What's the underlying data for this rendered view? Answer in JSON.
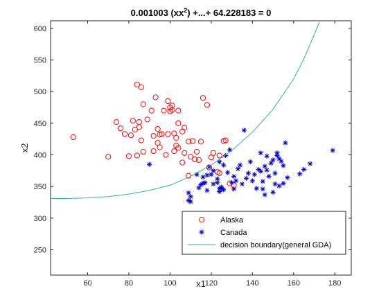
{
  "chart_data": {
    "type": "scatter",
    "title": {
      "prefix": "0.001003 (xx",
      "sup": "2",
      "suffix": ") +...+ 64.228183 = 0"
    },
    "xlabel": "x1",
    "ylabel": "x2",
    "xlim": [
      42,
      188
    ],
    "ylim": [
      210,
      612
    ],
    "xticks": [
      60,
      80,
      100,
      120,
      140,
      160,
      180
    ],
    "yticks": [
      250,
      300,
      350,
      400,
      450,
      500,
      550,
      600
    ],
    "grid": false,
    "legend_position": "bottom-right",
    "series": [
      {
        "name": "Alaska",
        "marker": "circle",
        "color": "#ff0000",
        "points": [
          [
            53,
            428
          ],
          [
            70,
            397
          ],
          [
            74,
            452
          ],
          [
            76,
            442
          ],
          [
            78,
            433
          ],
          [
            80,
            398
          ],
          [
            81,
            431
          ],
          [
            82,
            454
          ],
          [
            83,
            440
          ],
          [
            84,
            511
          ],
          [
            84,
            399
          ],
          [
            85,
            452
          ],
          [
            85,
            444
          ],
          [
            86,
            507
          ],
          [
            86,
            423
          ],
          [
            87,
            405
          ],
          [
            87,
            480
          ],
          [
            89,
            456
          ],
          [
            91,
            470
          ],
          [
            92,
            406
          ],
          [
            92,
            430
          ],
          [
            93,
            491
          ],
          [
            94,
            419
          ],
          [
            94,
            441
          ],
          [
            95,
            412
          ],
          [
            95,
            432
          ],
          [
            96,
            433
          ],
          [
            97,
            470
          ],
          [
            98,
            400
          ],
          [
            99,
            485
          ],
          [
            99,
            433
          ],
          [
            100,
            475
          ],
          [
            100,
            469
          ],
          [
            101,
            478
          ],
          [
            101,
            471
          ],
          [
            102,
            434
          ],
          [
            102,
            406
          ],
          [
            103,
            415
          ],
          [
            103,
            427
          ],
          [
            104,
            450
          ],
          [
            104,
            411
          ],
          [
            104,
            470
          ],
          [
            106,
            388
          ],
          [
            106,
            437
          ],
          [
            107,
            443
          ],
          [
            107,
            403
          ],
          [
            109,
            421
          ],
          [
            110,
            397
          ],
          [
            111,
            422
          ],
          [
            112,
            393
          ],
          [
            113,
            405
          ],
          [
            114,
            392
          ],
          [
            115,
            421
          ],
          [
            116,
            490
          ],
          [
            118,
            479
          ],
          [
            119,
            380
          ],
          [
            120,
            396
          ],
          [
            121,
            403
          ],
          [
            123,
            373
          ],
          [
            124,
            371
          ],
          [
            124,
            399
          ],
          [
            126,
            422
          ],
          [
            127,
            423
          ],
          [
            129,
            355
          ],
          [
            131,
            352
          ],
          [
            109,
            367
          ]
        ]
      },
      {
        "name": "Canada",
        "marker": "star",
        "color": "#0000cc",
        "points": [
          [
            90,
            385
          ],
          [
            109,
            340
          ],
          [
            109,
            328
          ],
          [
            110,
            326
          ],
          [
            110,
            334
          ],
          [
            113,
            369
          ],
          [
            114,
            348
          ],
          [
            115,
            353
          ],
          [
            116,
            355
          ],
          [
            116,
            365
          ],
          [
            117,
            356
          ],
          [
            118,
            368
          ],
          [
            118,
            344
          ],
          [
            119,
            381
          ],
          [
            120,
            369
          ],
          [
            121,
            375
          ],
          [
            121,
            354
          ],
          [
            122,
            306
          ],
          [
            123,
            356
          ],
          [
            123,
            362
          ],
          [
            124,
            347
          ],
          [
            124,
            342
          ],
          [
            124,
            389
          ],
          [
            125,
            346
          ],
          [
            125,
            349
          ],
          [
            126,
            345
          ],
          [
            126,
            384
          ],
          [
            127,
            399
          ],
          [
            128,
            372
          ],
          [
            129,
            408
          ],
          [
            130,
            356
          ],
          [
            131,
            366
          ],
          [
            131,
            346
          ],
          [
            132,
            359
          ],
          [
            133,
            378
          ],
          [
            134,
            384
          ],
          [
            135,
            354
          ],
          [
            136,
            439
          ],
          [
            137,
            363
          ],
          [
            138,
            371
          ],
          [
            139,
            389
          ],
          [
            140,
            359
          ],
          [
            141,
            369
          ],
          [
            142,
            347
          ],
          [
            143,
            377
          ],
          [
            144,
            403
          ],
          [
            144,
            374
          ],
          [
            145,
            358
          ],
          [
            145,
            346
          ],
          [
            146,
            337
          ],
          [
            146,
            382
          ],
          [
            147,
            398
          ],
          [
            147,
            376
          ],
          [
            148,
            366
          ],
          [
            149,
            387
          ],
          [
            150,
            392
          ],
          [
            150,
            341
          ],
          [
            151,
            371
          ],
          [
            151,
            354
          ],
          [
            152,
            301
          ],
          [
            152,
            399
          ],
          [
            152,
            403
          ],
          [
            153,
            394
          ],
          [
            153,
            351
          ],
          [
            154,
            390
          ],
          [
            155,
            383
          ],
          [
            155,
            355
          ],
          [
            156,
            419
          ],
          [
            157,
            364
          ],
          [
            163,
            370
          ],
          [
            165,
            377
          ],
          [
            168,
            386
          ],
          [
            179,
            407
          ]
        ]
      },
      {
        "name": "decision boundary(general GDA)",
        "marker": "line",
        "color": "#2ab3a0",
        "points": [
          [
            42,
            331
          ],
          [
            50,
            331
          ],
          [
            60,
            332
          ],
          [
            70,
            334
          ],
          [
            80,
            338
          ],
          [
            90,
            344
          ],
          [
            100,
            352
          ],
          [
            110,
            366
          ],
          [
            120,
            384
          ],
          [
            130,
            407
          ],
          [
            140,
            436
          ],
          [
            150,
            472
          ],
          [
            160,
            520
          ],
          [
            165,
            552
          ],
          [
            170,
            590
          ],
          [
            172.5,
            610
          ]
        ]
      }
    ]
  }
}
